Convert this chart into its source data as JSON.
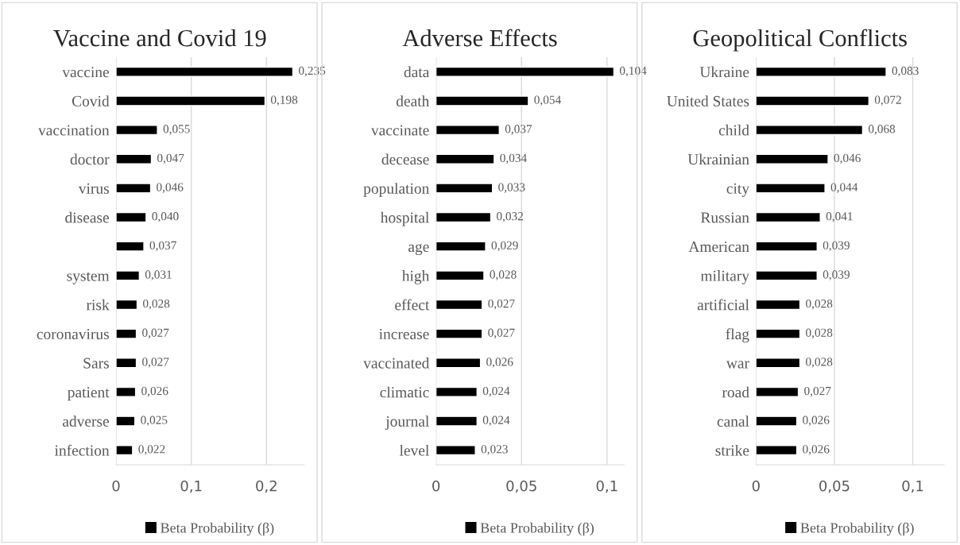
{
  "chart_data": [
    {
      "type": "bar",
      "orientation": "horizontal",
      "title": "Vaccine and Covid 19",
      "categories": [
        "vaccine",
        "Covid",
        "vaccination",
        "doctor",
        "virus",
        "disease",
        null,
        "system",
        "risk",
        "coronavirus",
        "Sars",
        "patient",
        "adverse",
        "infection"
      ],
      "series": [
        {
          "name": "Beta Probability (β)",
          "color": "#000000",
          "values": [
            0.235,
            0.198,
            0.055,
            0.047,
            0.046,
            0.04,
            0.037,
            0.031,
            0.028,
            0.027,
            0.027,
            0.026,
            0.025,
            0.022
          ],
          "value_labels": [
            "0,235",
            "0,198",
            "0,055",
            "0,047",
            "0,046",
            "0,040",
            "0,037",
            "0,031",
            "0,028",
            "0,027",
            "0,027",
            "0,026",
            "0,025",
            "0,022"
          ]
        }
      ],
      "xlim": [
        0,
        0.25
      ],
      "xticks": [
        {
          "value": 0,
          "label": "0"
        },
        {
          "value": 0.1,
          "label": "0,1"
        },
        {
          "value": 0.2,
          "label": "0,2"
        }
      ],
      "grid": "x",
      "legend": "bottom"
    },
    {
      "type": "bar",
      "orientation": "horizontal",
      "title": "Adverse Effects",
      "categories": [
        "data",
        "death",
        "vaccinate",
        "decease",
        "population",
        "hospital",
        "age",
        "high",
        "effect",
        "increase",
        "vaccinated",
        "climatic",
        "journal",
        "level"
      ],
      "series": [
        {
          "name": "Beta Probability (β)",
          "color": "#000000",
          "values": [
            0.104,
            0.054,
            0.037,
            0.034,
            0.033,
            0.032,
            0.029,
            0.028,
            0.027,
            0.027,
            0.026,
            0.024,
            0.024,
            0.023
          ],
          "value_labels": [
            "0,104",
            "0,054",
            "0,037",
            "0,034",
            "0,033",
            "0,032",
            "0,029",
            "0,028",
            "0,027",
            "0,027",
            "0,026",
            "0,024",
            "0,024",
            "0,023"
          ]
        }
      ],
      "xlim": [
        0,
        0.11
      ],
      "xticks": [
        {
          "value": 0,
          "label": "0"
        },
        {
          "value": 0.05,
          "label": "0,05"
        },
        {
          "value": 0.1,
          "label": "0,1"
        }
      ],
      "grid": "x",
      "legend": "bottom"
    },
    {
      "type": "bar",
      "orientation": "horizontal",
      "title": "Geopolitical Conflicts",
      "categories": [
        "Ukraine",
        "United States",
        "child",
        "Ukrainian",
        "city",
        "Russian",
        "American",
        "military",
        "artificial",
        "flag",
        "war",
        "road",
        "canal",
        "strike"
      ],
      "series": [
        {
          "name": "Beta Probability (β)",
          "color": "#000000",
          "values": [
            0.083,
            0.072,
            0.068,
            0.046,
            0.044,
            0.041,
            0.039,
            0.039,
            0.028,
            0.028,
            0.028,
            0.027,
            0.026,
            0.026
          ],
          "value_labels": [
            "0,083",
            "0,072",
            "0,068",
            "0,046",
            "0,044",
            "0,041",
            "0,039",
            "0,039",
            "0,028",
            "0,028",
            "0,028",
            "0,027",
            "0,026",
            "0,026"
          ]
        }
      ],
      "xlim": [
        0,
        0.12
      ],
      "xticks": [
        {
          "value": 0,
          "label": "0"
        },
        {
          "value": 0.05,
          "label": "0,05"
        },
        {
          "value": 0.1,
          "label": "0,1"
        }
      ],
      "grid": "x",
      "legend": "bottom"
    }
  ]
}
